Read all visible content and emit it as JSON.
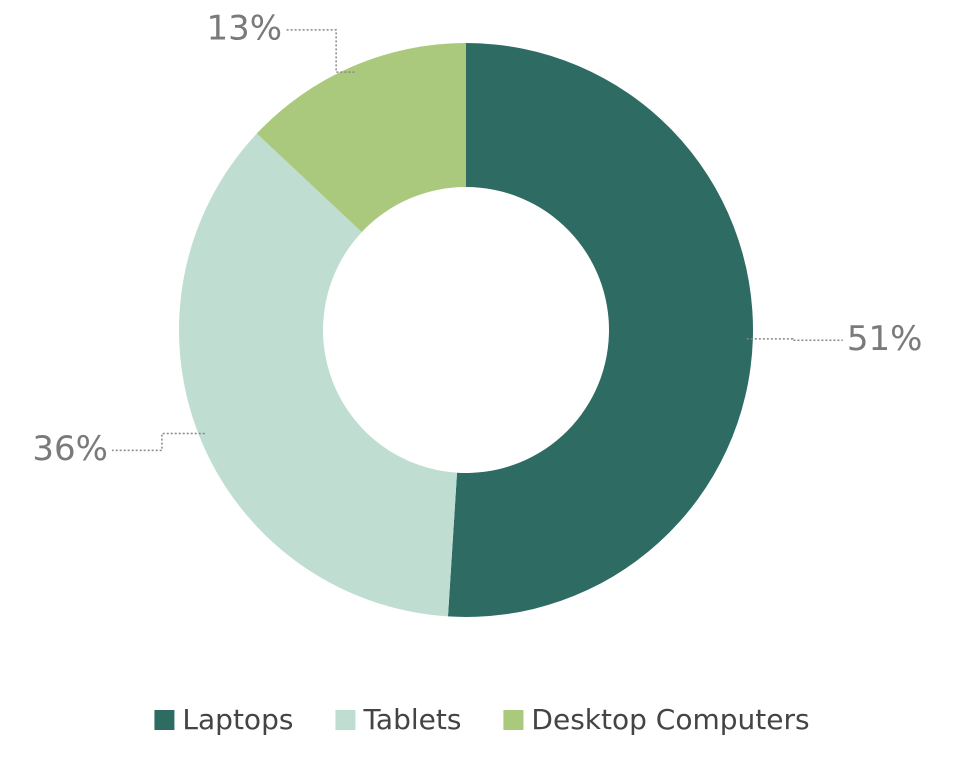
{
  "chart_data": {
    "type": "pie",
    "categories": [
      "Laptops",
      "Tablets",
      "Desktop Computers"
    ],
    "values": [
      51,
      36,
      13
    ],
    "value_labels": [
      "51%",
      "36%",
      "13%"
    ],
    "colors": [
      "#2e6b63",
      "#bfddd0",
      "#abc97c"
    ],
    "legend": "bottom"
  }
}
